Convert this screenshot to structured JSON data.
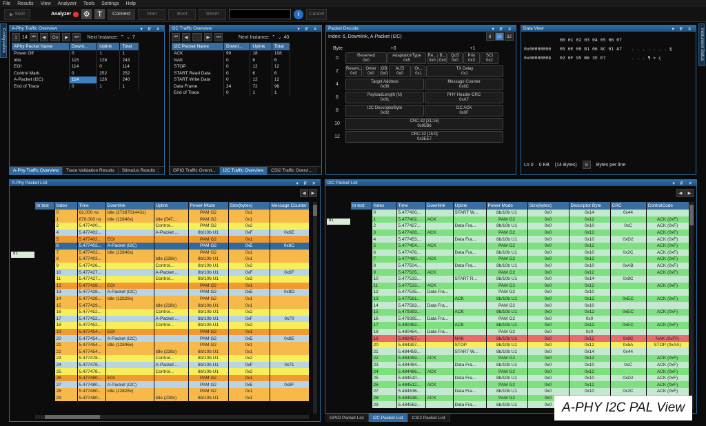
{
  "menu": [
    "File",
    "Results",
    "View",
    "Analyzer",
    "Tools",
    "Settings",
    "Help"
  ],
  "toolbar": {
    "start1": "Start",
    "analyzer": "Analyzer",
    "connect": "Connect",
    "start2": "Start",
    "boot": "Boot",
    "reset": "Reset",
    "cancel": "Cancel"
  },
  "side": {
    "left": "Configuration",
    "right": "Instrument Status"
  },
  "aphy_ov": {
    "title": "A-Phy Traffic Overview",
    "spin": "1",
    "count": "14",
    "go": "Go",
    "next": "Next Instance:",
    "next_val": "7",
    "headers": [
      "APhy Packet Name",
      "Downl...",
      "Uplink",
      "Total"
    ],
    "rows": [
      [
        "Power Off",
        "0",
        "1",
        "1"
      ],
      [
        "Idle",
        "115",
        "128",
        "243"
      ],
      [
        "EOI",
        "114",
        "0",
        "114"
      ],
      [
        "Control Mark",
        "0",
        "252",
        "252"
      ],
      [
        "A-Packet (I2C)",
        "114",
        "126",
        "240"
      ],
      [
        "End of Trace",
        "0",
        "1",
        "1"
      ]
    ],
    "tabs": [
      "A-Phy Traffic Overview",
      "Trace Validation Results",
      "Stimulus Results"
    ]
  },
  "i2c_ov": {
    "title": "I2C Traffic Overview",
    "next": "Next Instance:",
    "next_val": "40",
    "headers": [
      "I2C Packet Name",
      "Downl...",
      "Uplink",
      "Total"
    ],
    "rows": [
      [
        "ACK",
        "90",
        "18",
        "108"
      ],
      [
        "NAK",
        "0",
        "6",
        "6"
      ],
      [
        "STOP",
        "0",
        "12",
        "12"
      ],
      [
        "START Read Data",
        "0",
        "6",
        "6"
      ],
      [
        "START Write Data",
        "0",
        "12",
        "12"
      ],
      [
        "Data Frame",
        "24",
        "72",
        "96"
      ],
      [
        "End of Trace",
        "0",
        "1",
        "1"
      ]
    ],
    "tabs": [
      "GPIO Traffic Overvi...",
      "I2C Traffic Overview",
      "CSI2 Traffic Overvi..."
    ]
  },
  "pd": {
    "title": "Packet Decode",
    "subtitle": "Index: 6, Downlink, A-Packet (I2C)",
    "b8": "8",
    "b16": "16",
    "b32": "32",
    "byte": "Byte",
    "p0": "+0",
    "p1": "+1",
    "rows": [
      {
        "n": "0",
        "cells": [
          [
            "Reserved",
            "0x0",
            60
          ],
          [
            "AdaptationType",
            "0x5",
            56
          ],
          [
            "Re...",
            "0x0",
            16
          ],
          [
            "B...",
            "0x0",
            12
          ],
          [
            "QoS",
            "0x0",
            22
          ],
          [
            "Prio",
            "0x3",
            24
          ],
          [
            "SCI",
            "0x2",
            26
          ]
        ]
      },
      {
        "n": "2",
        "cells": [
          [
            "Reserv...",
            "0x0",
            24
          ],
          [
            "Order",
            "0x0",
            24
          ],
          [
            "OB",
            "0x0",
            12
          ],
          [
            "ALEI",
            "0x0",
            32
          ],
          [
            "Or...",
            "0x1",
            20
          ],
          [
            "TX Delay",
            "0x1",
            112
          ]
        ]
      },
      {
        "n": "4",
        "cells": [
          [
            "Target Address",
            "0x06",
            114
          ],
          [
            "Message Counter",
            "0x8C",
            114
          ]
        ]
      },
      {
        "n": "6",
        "cells": [
          [
            "PayloadLength (N)",
            "0x01",
            114
          ],
          [
            "PHY Header-CRC",
            "0xA7",
            114
          ]
        ]
      },
      {
        "n": "8",
        "cells": [
          [
            "I2C DescriptorByte",
            "0x02",
            114
          ],
          [
            "I2C ACK",
            "0x0F",
            114
          ]
        ]
      },
      {
        "n": "10",
        "cells": [
          [
            "CRC-32 [31:16]",
            "0x95B6",
            229
          ]
        ]
      },
      {
        "n": "12",
        "cells": [
          [
            "CRC-32 [15:0]",
            "0x3EE7",
            229
          ]
        ]
      }
    ]
  },
  "dv": {
    "title": "Data View",
    "cols": "00 01 02 03 04 05 06 07",
    "r1a": "0x00000000",
    "r1b": "05 0E 00 B1 06 8C 01 A7",
    "r1c": ". . . . . . . §",
    "r2a": "0x00000008",
    "r2b": "02 0F 95 B6 3E E7",
    "r2c": ". . . ¶ > ç",
    "ln": "Ln 0",
    "kb": "0 KB",
    "bytes": "(14 Bytes)",
    "bpl": "8",
    "bpl_label": "Bytes per line"
  },
  "apl": {
    "title": "A-Phy Packet List",
    "sel": "81",
    "headers": [
      "In test",
      "Index",
      "Time",
      "Downlink",
      "Uplink",
      "Power Mode",
      "Size(bytes)",
      "Message Counter"
    ],
    "rows": [
      [
        "",
        "0",
        "62.000 ns",
        "Idle (2738701443x)",
        "",
        "PAM G2",
        "0x1",
        ""
      ],
      [
        "",
        "1",
        "676.000 ns",
        "Idle (12846x)",
        "Idle (547...",
        "PAM G2",
        "0x1",
        ""
      ],
      [
        "",
        "2",
        "5.477400...",
        "",
        "Control...",
        "PAM G2",
        "0x2",
        ""
      ],
      [
        "",
        "4",
        "5.477402...",
        "",
        "A-Packet ...",
        "8b/10b U1",
        "0xF",
        "0x6E"
      ],
      [
        "",
        "5",
        "5.477402...",
        "EOI",
        "",
        "PAM G2",
        "0x1",
        ""
      ],
      [
        "",
        "6",
        "5.477402...",
        "A-Packet (I2C)",
        "",
        "PAM G2",
        "0xE",
        "0x8C"
      ],
      [
        "",
        "7",
        "5.477402...",
        "Idle (12846x)",
        "",
        "PAM G2",
        "0x1",
        ""
      ],
      [
        "",
        "8",
        "5.477403...",
        "",
        "Idle (238x)",
        "8b/10b U1",
        "0x1",
        ""
      ],
      [
        "",
        "9",
        "5.477426...",
        "",
        "Control...",
        "8b/10b U1",
        "0x2",
        ""
      ],
      [
        "",
        "10",
        "5.477427...",
        "",
        "A-Packet ...",
        "8b/10b U1",
        "0xF",
        "0x6F"
      ],
      [
        "",
        "11",
        "5.477427...",
        "",
        "Control...",
        "8b/10b U1",
        "0x2",
        ""
      ],
      [
        "",
        "12",
        "5.477428...",
        "EOI",
        "",
        "PAM G2",
        "0x1",
        ""
      ],
      [
        "",
        "13",
        "5.477428...",
        "A-Packet (I2C)",
        "",
        "PAM G2",
        "0xE",
        "0x8D"
      ],
      [
        "",
        "14",
        "5.477428...",
        "Idle (12828x)",
        "",
        "PAM G2",
        "0x1",
        ""
      ],
      [
        "",
        "15",
        "5.477429...",
        "",
        "Idle (238x)",
        "8b/10b U1",
        "0x1",
        ""
      ],
      [
        "",
        "16",
        "5.477452...",
        "",
        "Control...",
        "8b/10b U1",
        "0x2",
        ""
      ],
      [
        "",
        "17",
        "5.477452...",
        "",
        "A-Packet ...",
        "8b/10b U1",
        "0xF",
        "0x70"
      ],
      [
        "",
        "18",
        "5.477452...",
        "",
        "Control...",
        "8b/10b U1",
        "0x2",
        ""
      ],
      [
        "",
        "19",
        "5.477454...",
        "EOI",
        "",
        "PAM G2",
        "0x1",
        ""
      ],
      [
        "",
        "20",
        "5.477454...",
        "A-Packet (I2C)",
        "",
        "PAM G2",
        "0xE",
        "0x8E"
      ],
      [
        "",
        "21",
        "5.477454...",
        "Idle (12846x)",
        "",
        "PAM G2",
        "0x1",
        ""
      ],
      [
        "",
        "22",
        "5.477454...",
        "",
        "Idle (238x)",
        "8b/10b U1",
        "0x1",
        ""
      ],
      [
        "",
        "23",
        "5.477478...",
        "",
        "Control...",
        "8b/10b U1",
        "0x2",
        ""
      ],
      [
        "",
        "24",
        "5.477478...",
        "",
        "A-Packet ...",
        "8b/10b U1",
        "0xF",
        "0x71"
      ],
      [
        "",
        "25",
        "5.477478...",
        "",
        "Control...",
        "8b/10b U1",
        "0x2",
        ""
      ],
      [
        "",
        "26",
        "5.477480...",
        "EOI",
        "",
        "PAM G2",
        "0x1",
        ""
      ],
      [
        "",
        "27",
        "5.477480...",
        "A-Packet (I2C)",
        "",
        "PAM G2",
        "0xE",
        "0x8F"
      ],
      [
        "",
        "28",
        "5.477480...",
        "Idle (12828x)",
        "",
        "PAM G2",
        "0x1",
        ""
      ],
      [
        "",
        "29",
        "5.477480...",
        "",
        "Idle (238x)",
        "8b/10b U1",
        "0x1",
        ""
      ]
    ]
  },
  "ipl": {
    "title": "I2C Packet List",
    "sel": "81",
    "headers": [
      "In test",
      "Index",
      "Time",
      "Downlink",
      "Uplink",
      "Power Mode",
      "Size(bytes)",
      "Descriptor Byte",
      "CRC",
      "ControlCode"
    ],
    "rows": [
      [
        "",
        "0",
        "5.477400...",
        "",
        "START W...",
        "8b/10b U1",
        "0x0",
        "0x14",
        "0x44",
        ""
      ],
      [
        "",
        "1",
        "5.477402...",
        "ACK",
        "",
        "PAM G2",
        "0x0",
        "0x12",
        "",
        "ACK (0xF)"
      ],
      [
        "",
        "2",
        "5.477427...",
        "",
        "Data Fra...",
        "8b/10b U1",
        "0x0",
        "0x10",
        "0xC",
        "ACK (0xF)"
      ],
      [
        "",
        "3",
        "5.477428...",
        "ACK",
        "",
        "PAM G2",
        "0x0",
        "0x12",
        "",
        "ACK (0xF)"
      ],
      [
        "",
        "4",
        "5.477453...",
        "",
        "Data Fra...",
        "8b/10b U1",
        "0x0",
        "0x10",
        "0xD2",
        "ACK (0xF)"
      ],
      [
        "",
        "5",
        "5.477454...",
        "ACK",
        "",
        "PAM G2",
        "0x0",
        "0x12",
        "",
        "ACK (0xF)"
      ],
      [
        "",
        "6",
        "5.477478...",
        "",
        "Data Fra...",
        "8b/10b U1",
        "0x0",
        "0x10",
        "0x2C",
        "ACK (0xF)"
      ],
      [
        "",
        "7",
        "5.477480...",
        "ACK",
        "",
        "PAM G2",
        "0x0",
        "0x12",
        "",
        "ACK (0xF)"
      ],
      [
        "",
        "8",
        "5.477504...",
        "",
        "Data Fra...",
        "8b/10b U1",
        "0x0",
        "0x10",
        "0xAB",
        "ACK (0xF)"
      ],
      [
        "",
        "9",
        "5.477505...",
        "ACK",
        "",
        "PAM G2",
        "0x0",
        "0x12",
        "",
        "ACK (0xF)"
      ],
      [
        "",
        "10",
        "5.477533...",
        "",
        "START R...",
        "8b/10b U1",
        "0x0",
        "0x14",
        "0x8C",
        ""
      ],
      [
        "",
        "11",
        "5.477533...",
        "ACK",
        "",
        "PAM G2",
        "0x0",
        "0x12",
        "",
        "ACK (0xF)"
      ],
      [
        "",
        "12",
        "5.477535...",
        "Data Fra...",
        "",
        "PAM G2",
        "0x0",
        "0x10",
        "",
        ""
      ],
      [
        "",
        "13",
        "5.477561...",
        "",
        "ACK",
        "8b/10b U1",
        "0x0",
        "0x12",
        "0xEC",
        "ACK (0xF)"
      ],
      [
        "",
        "14",
        "5.477563...",
        "Data Fra...",
        "",
        "PAM G2",
        "0x0",
        "0x10",
        "",
        ""
      ],
      [
        "",
        "15",
        "5.479393...",
        "",
        "ACK",
        "8b/10b U1",
        "0x0",
        "0x12",
        "0xEC",
        "ACK (0xF)"
      ],
      [
        "",
        "16",
        "5.479395...",
        "Data Fra...",
        "",
        "PAM G2",
        "0x0",
        "0x0",
        "",
        ""
      ],
      [
        "",
        "17",
        "5.480462...",
        "",
        "ACK",
        "8b/10b U1",
        "0x0",
        "0x12",
        "0xEC",
        "ACK (0xF)"
      ],
      [
        "",
        "18",
        "5.480464...",
        "Data Fra...",
        "",
        "PAM G2",
        "0x0",
        "0x0",
        "",
        ""
      ],
      [
        "",
        "19",
        "5.482457...",
        "",
        "NAK",
        "8b/10b U1",
        "0x0",
        "0x12",
        "0x9C",
        "NAK (0xF0)"
      ],
      [
        "",
        "20",
        "5.484397...",
        "",
        "STOP",
        "8b/10b U1",
        "0x0",
        "0x12",
        "0x5A",
        "STOP (0xAA)"
      ],
      [
        "",
        "21",
        "5.484459...",
        "",
        "START W...",
        "8b/10b U1",
        "0x0",
        "0x14",
        "0x44",
        ""
      ],
      [
        "",
        "22",
        "5.484459...",
        "ACK",
        "",
        "PAM G2",
        "0x0",
        "0x12",
        "",
        "ACK (0xF)"
      ],
      [
        "",
        "23",
        "5.484484...",
        "",
        "Data Fra...",
        "8b/10b U1",
        "0x0",
        "0x10",
        "0xC",
        "ACK (0xF)"
      ],
      [
        "",
        "24",
        "5.484486...",
        "ACK",
        "",
        "PAM G2",
        "0x0",
        "0x12",
        "",
        "ACK (0xF)"
      ],
      [
        "",
        "25",
        "5.484510...",
        "",
        "Data Fra...",
        "8b/10b U1",
        "0x0",
        "0x10",
        "0xD2",
        "ACK (0xF)"
      ],
      [
        "",
        "26",
        "5.484512...",
        "ACK",
        "",
        "PAM G2",
        "0x0",
        "0x12",
        "",
        "ACK (0xF)"
      ],
      [
        "",
        "27",
        "5.484536...",
        "",
        "Data Fra...",
        "8b/10b U1",
        "0x0",
        "0x10",
        "0x2C",
        "ACK (0xF)"
      ],
      [
        "",
        "28",
        "5.484538...",
        "ACK",
        "",
        "PAM G2",
        "0x0",
        "0x12",
        "",
        "ACK (0xF)"
      ],
      [
        "",
        "29",
        "5.484562...",
        "",
        "Data Fra...",
        "8b/10b U1",
        "0x0",
        "0x10",
        "0xAB",
        "ACK (0xF)"
      ]
    ],
    "tabs": [
      "GPIO Packet List",
      "I2C Packet List",
      "CSI2 Packet List"
    ]
  },
  "overlay": "A-PHY I2C PAL View"
}
